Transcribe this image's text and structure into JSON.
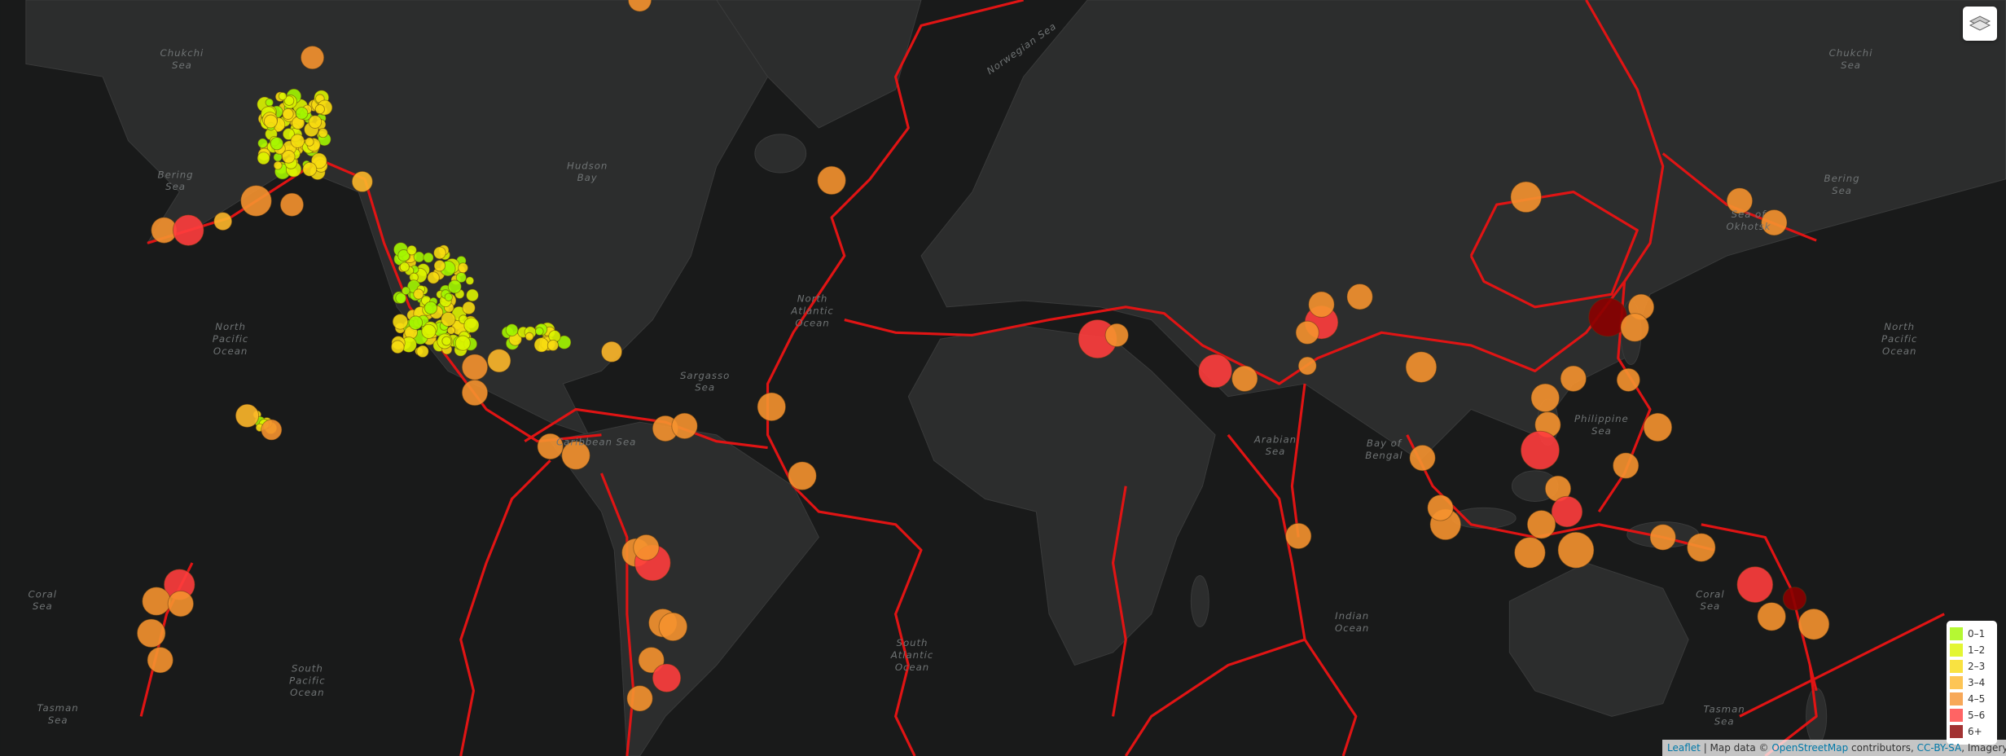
{
  "map_labels": [
    [
      "North",
      "Pacific",
      "Ocean"
    ],
    [
      "North",
      "Pacific",
      "Ocean"
    ],
    [
      "North",
      "Atlantic",
      "Ocean"
    ],
    [
      "South",
      "Atlantic",
      "Ocean"
    ],
    [
      "South",
      "Pacific",
      "Ocean"
    ],
    [
      "Indian",
      "Ocean"
    ],
    [
      "Philippine",
      "Sea"
    ],
    [
      "Bering",
      "Sea"
    ],
    [
      "Bering",
      "Sea"
    ],
    [
      "Sea of",
      "Okhotsk"
    ],
    [
      "Arabian",
      "Sea"
    ],
    [
      "Bay of",
      "Bengal"
    ],
    [
      "Coral",
      "Sea"
    ],
    [
      "Coral",
      "Sea"
    ],
    [
      "Tasman",
      "Sea"
    ],
    [
      "Tasman",
      "Sea"
    ],
    [
      "Sargasso",
      "Sea"
    ],
    [
      "Caribbean Sea"
    ],
    [
      "Hudson",
      "Bay"
    ],
    [
      "Chukchi",
      "Sea"
    ],
    [
      "Chukchi",
      "Sea"
    ],
    [
      "Norwegian Sea"
    ]
  ],
  "legend": [
    {
      "label": "0–1",
      "color": "#a3f600"
    },
    {
      "label": "1–2",
      "color": "#dcf400"
    },
    {
      "label": "2–3",
      "color": "#f7db11"
    },
    {
      "label": "3–4",
      "color": "#fdb72a"
    },
    {
      "label": "4–5",
      "color": "#f5922f"
    },
    {
      "label": "5–6",
      "color": "#ff3d3d"
    },
    {
      "label": "6+",
      "color": "#8b0000"
    }
  ],
  "attribution": {
    "leaflet": "Leaflet",
    "text": "| Map data ©",
    "osm": "OpenStreetMap",
    "contributors": "contributors,",
    "license": "CC-BY-SA",
    "imagery": ", Imagery © Mapbox"
  }
}
